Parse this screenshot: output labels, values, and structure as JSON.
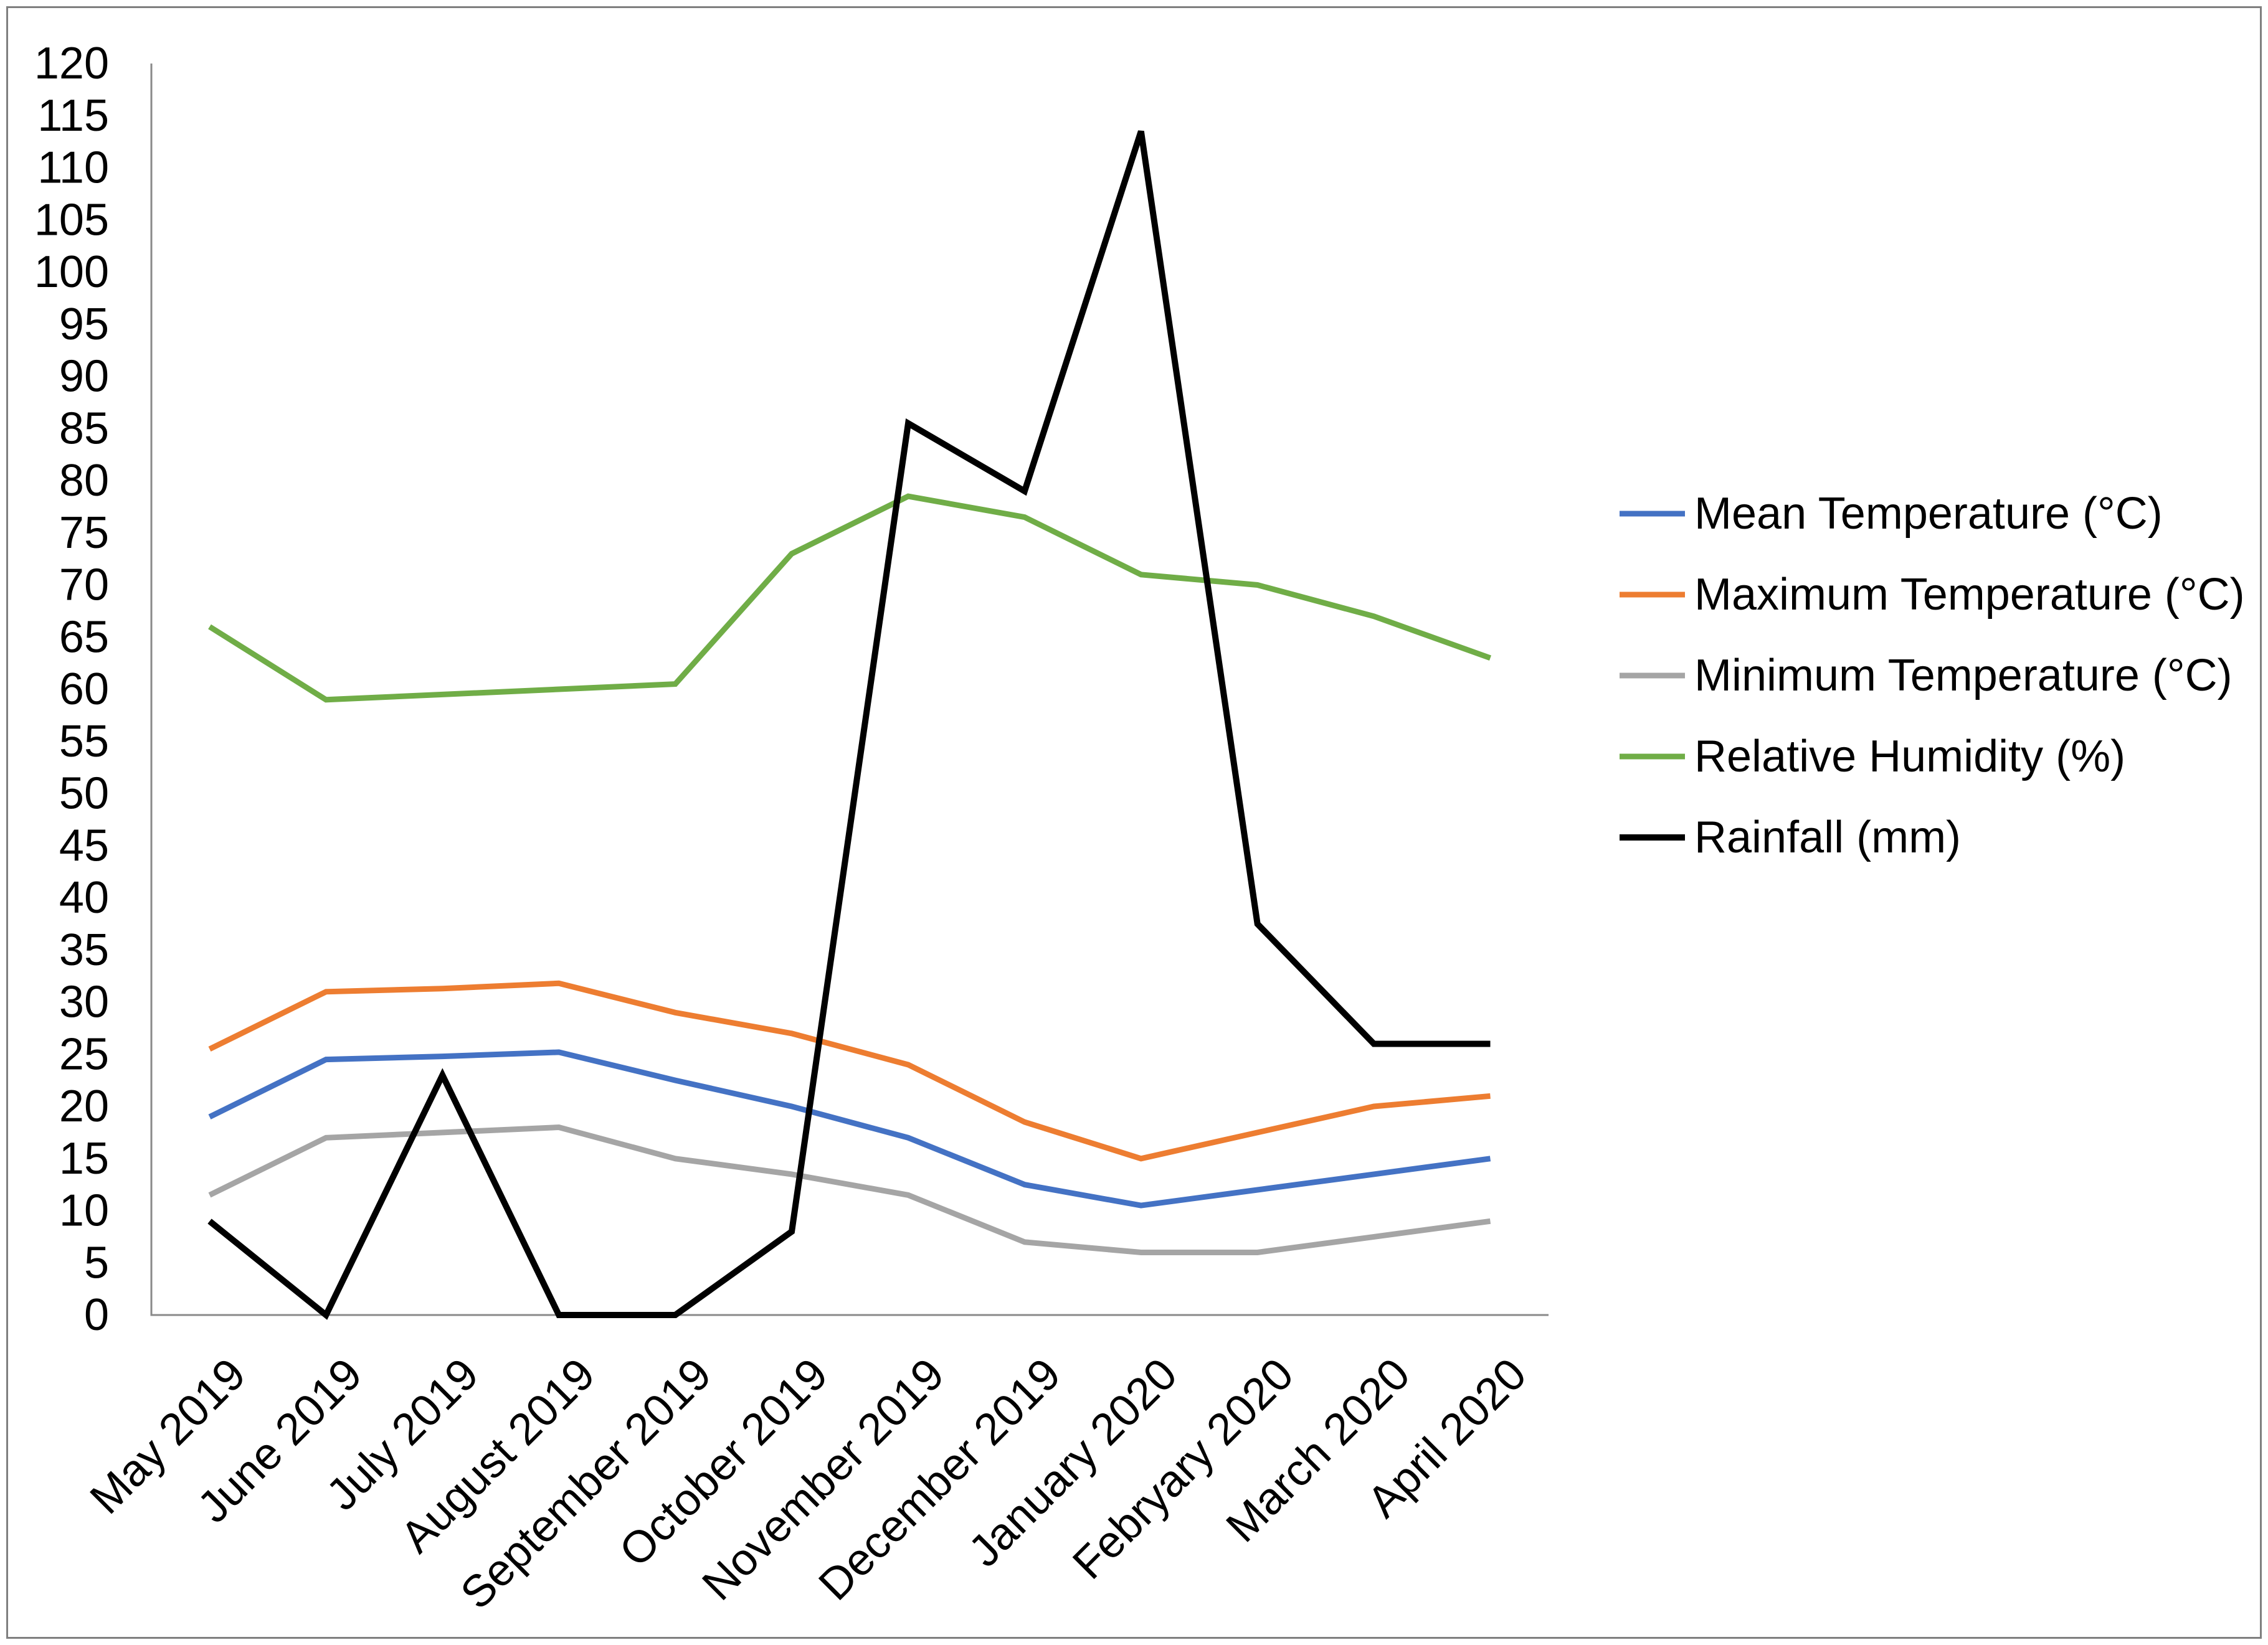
{
  "chart_data": {
    "type": "line",
    "title": "",
    "xlabel": "",
    "ylabel": "",
    "grid": false,
    "legend_position": "right",
    "ylim": [
      0,
      120
    ],
    "y_ticks": [
      0,
      5,
      10,
      15,
      20,
      25,
      30,
      35,
      40,
      45,
      50,
      55,
      60,
      65,
      70,
      75,
      80,
      85,
      90,
      95,
      100,
      105,
      110,
      115,
      120
    ],
    "categories": [
      "May 2019",
      "June 2019",
      "July 2019",
      "August 2019",
      "September 2019",
      "October 2019",
      "November 2019",
      "December 2019",
      "January 2020",
      "Febryary 2020",
      "March 2020",
      "April 2020"
    ],
    "series": [
      {
        "name": "Mean Temperature (°C)",
        "color": "#4472c4",
        "values": [
          19,
          24.5,
          24.8,
          25.2,
          22.5,
          20,
          17,
          12.5,
          10.5,
          12,
          13.5,
          15
        ]
      },
      {
        "name": "Maximum Temperature (°C)",
        "color": "#ed7d31",
        "values": [
          25.5,
          31,
          31.3,
          31.8,
          29,
          27,
          24,
          18.5,
          15,
          17.5,
          20,
          21
        ]
      },
      {
        "name": "Minimum Temperature (°C)",
        "color": "#a5a5a5",
        "values": [
          11.5,
          17,
          17.5,
          18,
          15,
          13.5,
          11.5,
          7,
          6,
          6,
          7.5,
          9
        ]
      },
      {
        "name": "Relative Humidity (%)",
        "color": "#70ad47",
        "values": [
          66,
          59,
          59.5,
          60,
          60.5,
          73,
          78.5,
          76.5,
          71,
          70,
          67,
          63
        ]
      },
      {
        "name": "Rainfall (mm)",
        "color": "#000000",
        "values": [
          9,
          0,
          23,
          0,
          0,
          8,
          85.5,
          79,
          113.5,
          37.5,
          26,
          26
        ]
      }
    ]
  },
  "colors": {
    "background": "#ffffff",
    "axis": "#8a8a8a",
    "frame": "#7f7f7f",
    "text": "#000000"
  }
}
